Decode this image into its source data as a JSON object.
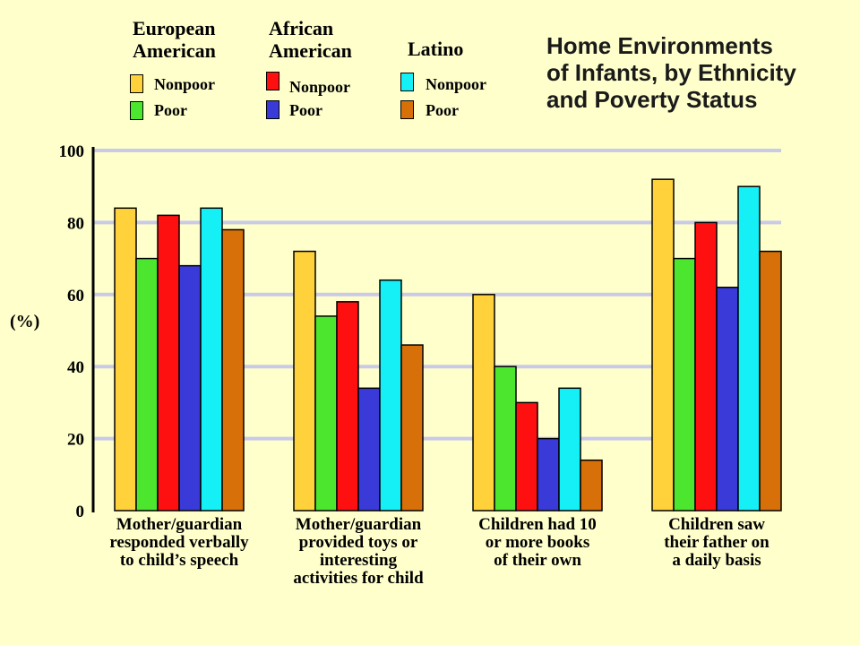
{
  "chart_data": {
    "type": "bar",
    "title": [
      "Home Environments",
      "of Infants, by Ethnicity",
      "and Poverty Status"
    ],
    "ylabel": "(%)",
    "ylim": [
      0,
      100
    ],
    "yticks": [
      0,
      20,
      40,
      60,
      80,
      100
    ],
    "grid": true,
    "legend_position": "top",
    "legend_groups": [
      {
        "title": [
          "European",
          "American"
        ],
        "entries": [
          "Nonpoor",
          "Poor"
        ]
      },
      {
        "title": [
          "African",
          "American"
        ],
        "entries": [
          "Nonpoor",
          "Poor"
        ]
      },
      {
        "title": [
          "Latino"
        ],
        "entries": [
          "Nonpoor",
          "Poor"
        ]
      }
    ],
    "categories": [
      [
        "Mother/guardian",
        "responded verbally",
        "to child’s speech"
      ],
      [
        "Mother/guardian",
        "provided toys or",
        "interesting",
        "activities for child"
      ],
      [
        "Children had 10",
        "or more books",
        "of their own"
      ],
      [
        "Children saw",
        "their father on",
        "a daily basis"
      ]
    ],
    "series": [
      {
        "name": "European American Nonpoor",
        "color": "#ffd23c",
        "values": [
          84,
          72,
          60,
          92
        ]
      },
      {
        "name": "European American Poor",
        "color": "#4ce62e",
        "values": [
          70,
          54,
          40,
          70
        ]
      },
      {
        "name": "African American Nonpoor",
        "color": "#ff1010",
        "values": [
          82,
          58,
          30,
          80
        ]
      },
      {
        "name": "African American Poor",
        "color": "#3a3ad8",
        "values": [
          68,
          34,
          20,
          62
        ]
      },
      {
        "name": "Latino Nonpoor",
        "color": "#14f0f5",
        "values": [
          84,
          64,
          34,
          90
        ]
      },
      {
        "name": "Latino Poor",
        "color": "#d8700a",
        "values": [
          78,
          46,
          14,
          72
        ]
      }
    ]
  }
}
